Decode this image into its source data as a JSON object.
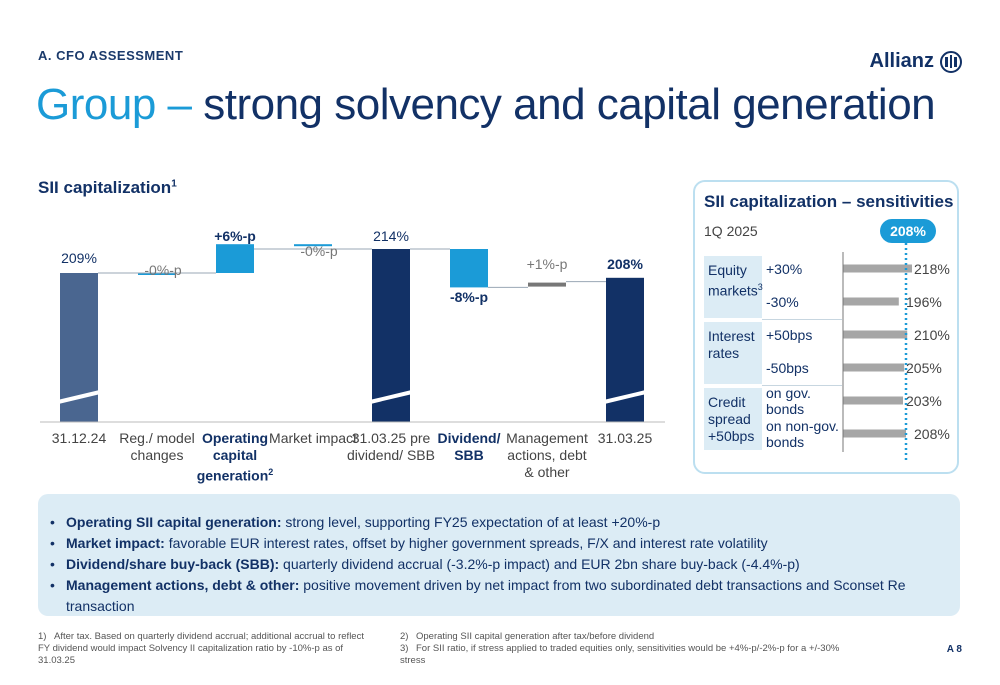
{
  "header": {
    "section": "A. CFO ASSESSMENT",
    "title_part1": "Group – ",
    "title_part2": "strong solvency and capital generation",
    "logo": "Allianz"
  },
  "chart": {
    "title": "SII capitalization",
    "title_sup": "1"
  },
  "chart_data": {
    "type": "bar",
    "subtype": "waterfall",
    "categories": [
      "31.12.24",
      "Reg./ model changes",
      "Operating capital generation",
      "Market impact",
      "31.03.25 pre dividend/ SBB",
      "Dividend/ SBB",
      "Management actions, debt & other",
      "31.03.25"
    ],
    "labels": [
      "209%",
      "-0%-p",
      "+6%-p",
      "-0%-p",
      "214%",
      "-8%-p",
      "+1%-p",
      "208%"
    ],
    "values": [
      209,
      0,
      6,
      0,
      214,
      -8,
      1,
      208
    ],
    "kinds": [
      "total",
      "delta",
      "delta",
      "delta",
      "total",
      "delta",
      "delta",
      "total"
    ],
    "colors": {
      "start": "#4a6690",
      "total": "#123166",
      "positive": "#1b9bd7",
      "negative": "#1b9bd7",
      "other": "#777777"
    }
  },
  "xlabels": [
    {
      "text": "31.12.24",
      "sup": ""
    },
    {
      "text": "Reg./ model changes",
      "sup": ""
    },
    {
      "text": "Operating capital generation",
      "sup": "2"
    },
    {
      "text": "Market impact",
      "sup": ""
    },
    {
      "text": "31.03.25 pre dividend/ SBB",
      "sup": ""
    },
    {
      "text": "Dividend/ SBB",
      "sup": ""
    },
    {
      "text": "Management actions, debt & other",
      "sup": ""
    },
    {
      "text": "31.03.25",
      "sup": ""
    }
  ],
  "sensitivities": {
    "title": "SII capitalization – sensitivities",
    "period": "1Q 2025",
    "base": "208%",
    "base_value": 208,
    "groups": [
      {
        "label": "Equity markets",
        "sup": "3"
      },
      {
        "label": "Interest rates",
        "sup": ""
      },
      {
        "label": "Credit spread +50bps",
        "sup": ""
      }
    ],
    "rows": [
      {
        "label": "+30%",
        "value": "218%",
        "num": 218
      },
      {
        "label": "-30%",
        "value": "196%",
        "num": 196
      },
      {
        "label": "+50bps",
        "value": "210%",
        "num": 210
      },
      {
        "label": "-50bps",
        "value": "205%",
        "num": 205
      },
      {
        "label": "on gov. bonds",
        "value": "203%",
        "num": 203
      },
      {
        "label": "on non-gov. bonds",
        "value": "208%",
        "num": 208
      }
    ]
  },
  "bullets": [
    {
      "head": "Operating SII capital generation:",
      "text": " strong level, supporting FY25 expectation of at least +20%-p"
    },
    {
      "head": "Market impact:",
      "text": " favorable EUR interest rates, offset by higher government spreads, F/X and interest rate volatility"
    },
    {
      "head": "Dividend/share buy-back (SBB):",
      "text": " quarterly dividend accrual (-3.2%-p impact) and EUR 2bn share buy-back (-4.4%-p)"
    },
    {
      "head": "Management actions, debt & other:",
      "text": " positive movement driven by net impact from two subordinated debt transactions and Sconset Re transaction"
    }
  ],
  "footnotes": [
    {
      "num": "1)",
      "text": "After tax. Based on quarterly dividend accrual; additional accrual to reflect FY dividend would impact Solvency II capitalization ratio by -10%-p as of 31.03.25"
    },
    {
      "num": "2)",
      "text": "Operating SII capital generation after tax/before dividend"
    },
    {
      "num": "3)",
      "text": "For SII ratio, if stress applied to traded equities only, sensitivities would be +4%-p/-2%-p for a +/-30% stress"
    }
  ],
  "page": "A 8"
}
